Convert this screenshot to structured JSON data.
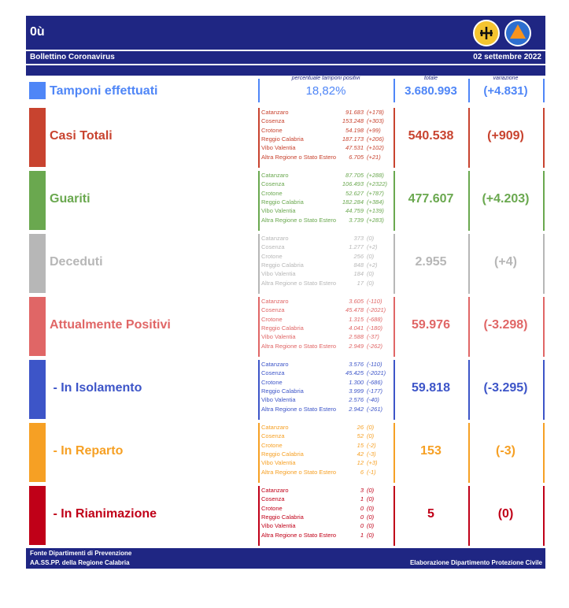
{
  "header": {
    "title": "0ù",
    "subtitle": "Bollettino Coronavirus",
    "date": "02 settembre 2022"
  },
  "tamponi": {
    "label": "Tamponi effettuati",
    "color": "#4f86f7",
    "pct_header": "percentuale tamponi positivi",
    "pct": "18,82%",
    "total_header": "totale",
    "total": "3.680.993",
    "var_header": "variazione",
    "var": "(+4.831)"
  },
  "sections": [
    {
      "label": "Casi Totali",
      "color": "#c8432f",
      "rows": [
        [
          "Catanzaro",
          "91.683",
          "(+178)"
        ],
        [
          "Cosenza",
          "153.248",
          "(+303)"
        ],
        [
          "Crotone",
          "54.198",
          "(+99)"
        ],
        [
          "Reggio Calabria",
          "187.173",
          "(+206)"
        ],
        [
          "Vibo Valentia",
          "47.531",
          "(+102)"
        ],
        [
          "Altra Regione o Stato Estero",
          "6.705",
          "(+21)"
        ]
      ],
      "total": "540.538",
      "change": "(+909)"
    },
    {
      "label": "Guariti",
      "color": "#6aa84f",
      "rows": [
        [
          "Catanzaro",
          "87.705",
          "(+288)"
        ],
        [
          "Cosenza",
          "106.493",
          "(+2322)"
        ],
        [
          "Crotone",
          "52.627",
          "(+787)"
        ],
        [
          "Reggio Calabria",
          "182.284",
          "(+384)"
        ],
        [
          "Vibo Valentia",
          "44.759",
          "(+139)"
        ],
        [
          "Altra Regione o Stato Estero",
          "3.739",
          "(+283)"
        ]
      ],
      "total": "477.607",
      "change": "(+4.203)"
    },
    {
      "label": "Deceduti",
      "color": "#b7b7b7",
      "rows": [
        [
          "Catanzaro",
          "373",
          "(0)"
        ],
        [
          "Cosenza",
          "1.277",
          "(+2)"
        ],
        [
          "Crotone",
          "256",
          "(0)"
        ],
        [
          "Reggio Calabria",
          "848",
          "(+2)"
        ],
        [
          "Vibo Valentia",
          "184",
          "(0)"
        ],
        [
          "Altra Regione o Stato Estero",
          "17",
          "(0)"
        ]
      ],
      "total": "2.955",
      "change": "(+4)"
    },
    {
      "label": "Attualmente Positivi",
      "color": "#e06666",
      "rows": [
        [
          "Catanzaro",
          "3.605",
          "(-110)"
        ],
        [
          "Cosenza",
          "45.478",
          "(-2021)"
        ],
        [
          "Crotone",
          "1.315",
          "(-688)"
        ],
        [
          "Reggio Calabria",
          "4.041",
          "(-180)"
        ],
        [
          "Vibo Valentia",
          "2.588",
          "(-37)"
        ],
        [
          "Altra Regione o Stato Estero",
          "2.949",
          "(-262)"
        ]
      ],
      "total": "59.976",
      "change": "(-3.298)"
    },
    {
      "label": " - In Isolamento",
      "color": "#3d55c8",
      "rows": [
        [
          "Catanzaro",
          "3.576",
          "(-110)"
        ],
        [
          "Cosenza",
          "45.425",
          "(-2021)"
        ],
        [
          "Crotone",
          "1.300",
          "(-686)"
        ],
        [
          "Reggio Calabria",
          "3.999",
          "(-177)"
        ],
        [
          "Vibo Valentia",
          "2.576",
          "(-40)"
        ],
        [
          "Altra Regione o Stato Estero",
          "2.942",
          "(-261)"
        ]
      ],
      "total": "59.818",
      "change": "(-3.295)"
    },
    {
      "label": " - In Reparto",
      "color": "#f6a024",
      "rows": [
        [
          "Catanzaro",
          "26",
          "(0)"
        ],
        [
          "Cosenza",
          "52",
          "(0)"
        ],
        [
          "Crotone",
          "15",
          "(-2)"
        ],
        [
          "Reggio Calabria",
          "42",
          "(-3)"
        ],
        [
          "Vibo Valentia",
          "12",
          "(+3)"
        ],
        [
          "Altra Regione o Stato Estero",
          "6",
          "(-1)"
        ]
      ],
      "total": "153",
      "change": "(-3)"
    },
    {
      "label": " - In Rianimazione",
      "color": "#c00018",
      "rows": [
        [
          "Catanzaro",
          "3",
          "(0)"
        ],
        [
          "Cosenza",
          "1",
          "(0)"
        ],
        [
          "Crotone",
          "0",
          "(0)"
        ],
        [
          "Reggio Calabria",
          "0",
          "(0)"
        ],
        [
          "Vibo Valentia",
          "0",
          "(0)"
        ],
        [
          "Altra Regione o Stato Estero",
          "1",
          "(0)"
        ]
      ],
      "total": "5",
      "change": "(0)"
    }
  ],
  "footer": {
    "line1": "Fonte Dipartimenti di Prevenzione",
    "line2": "AA.SS.PP.  della Regione Calabria",
    "credit": "Elaborazione Dipartimento Protezione Civile"
  }
}
